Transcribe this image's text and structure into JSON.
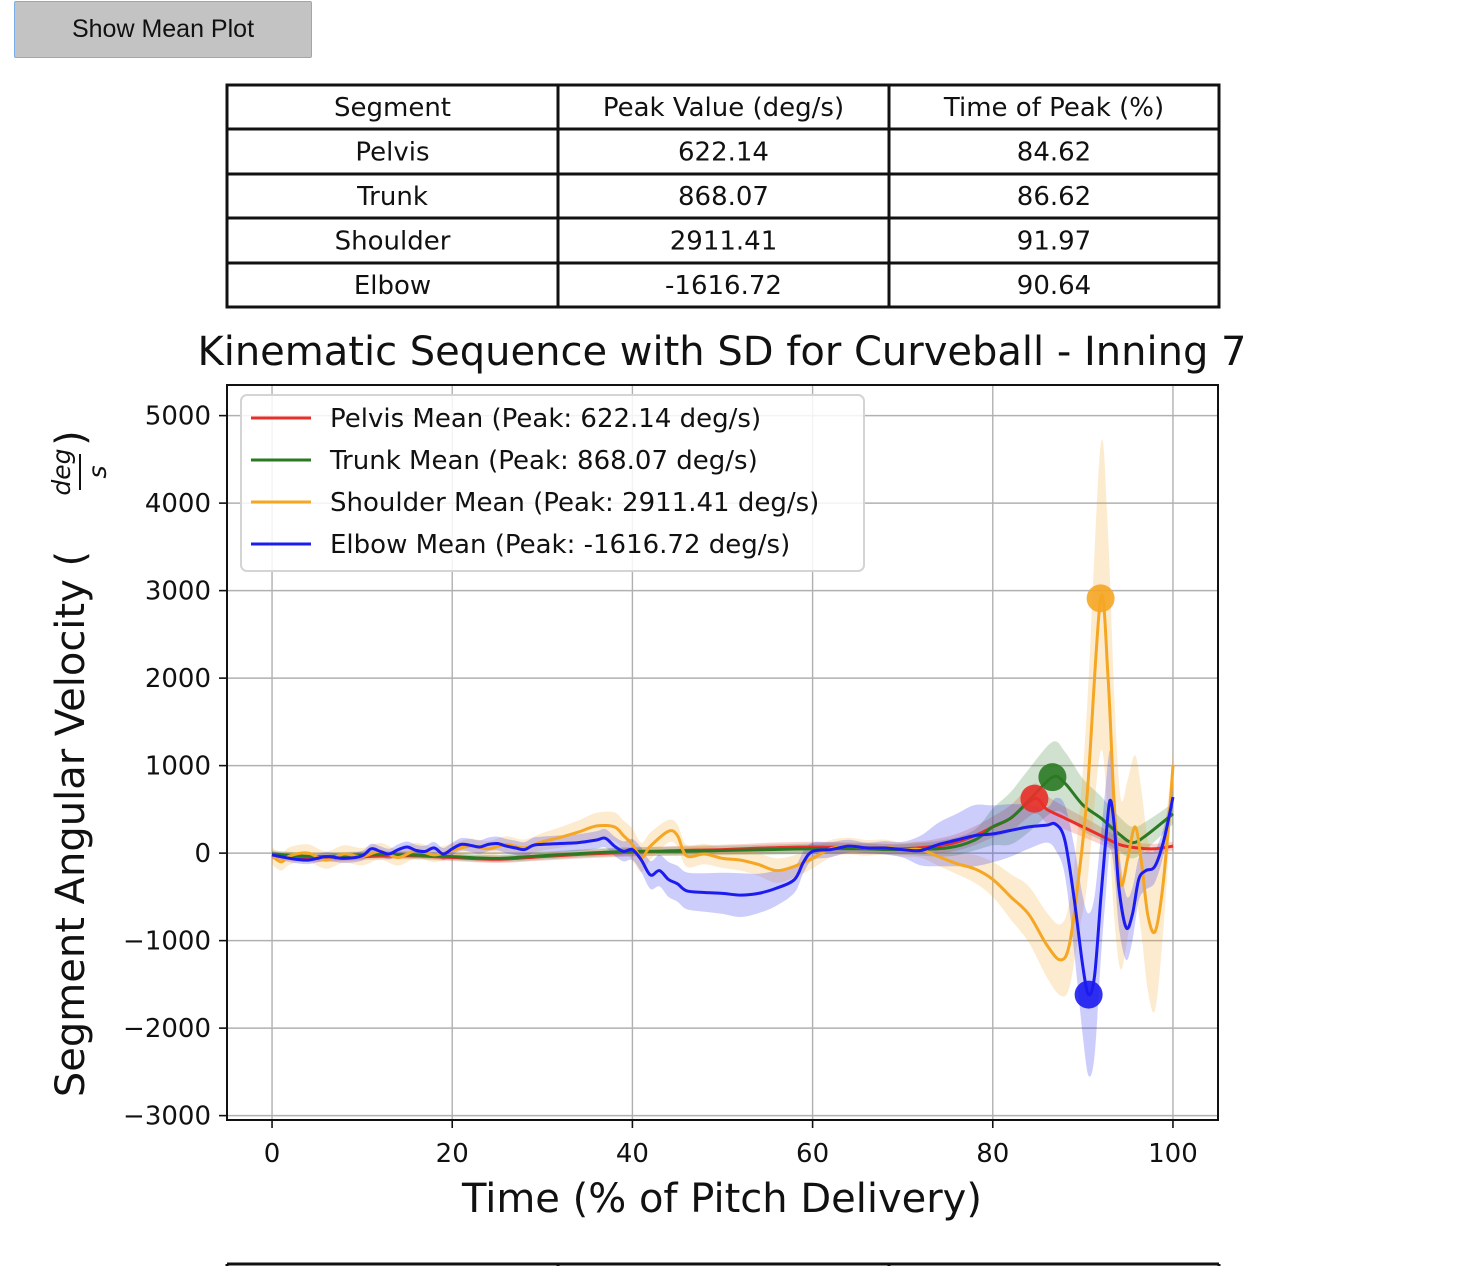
{
  "button": {
    "label": "Show Mean Plot"
  },
  "table": {
    "headers": [
      "Segment",
      "Peak Value (deg/s)",
      "Time of Peak (%)"
    ],
    "rows": [
      [
        "Pelvis",
        "622.14",
        "84.62"
      ],
      [
        "Trunk",
        "868.07",
        "86.62"
      ],
      [
        "Shoulder",
        "2911.41",
        "91.97"
      ],
      [
        "Elbow",
        "-1616.72",
        "90.64"
      ]
    ]
  },
  "chart_data": {
    "type": "line",
    "title": "Kinematic Sequence with SD for Curveball - Inning 7",
    "xlabel": "Time (% of Pitch Delivery)",
    "ylabel": "Segment Angular Velocity (deg/s)",
    "ylabel_main": "Segment Angular Velocity (",
    "ylabel_num": "deg",
    "ylabel_den": "s",
    "ylabel_close": ")",
    "xlim": [
      -5,
      105
    ],
    "ylim": [
      -3050,
      5350
    ],
    "xticks": [
      0,
      20,
      40,
      60,
      80,
      100
    ],
    "yticks": [
      5000,
      4000,
      3000,
      2000,
      1000,
      0,
      -1000,
      -2000,
      -3000
    ],
    "ytick_labels": [
      "5000",
      "4000",
      "3000",
      "2000",
      "1000",
      "0",
      "−1000",
      "−2000",
      "−3000"
    ],
    "grid": true,
    "legend_position": "top-left",
    "series": [
      {
        "name": "Pelvis Mean (Peak: 622.14 deg/s)",
        "color": "#e8302a",
        "peak": [
          84.62,
          622.14
        ],
        "points": [
          [
            0,
            -30
          ],
          [
            5,
            -60
          ],
          [
            10,
            -40
          ],
          [
            15,
            -30
          ],
          [
            20,
            -50
          ],
          [
            25,
            -70
          ],
          [
            30,
            -40
          ],
          [
            35,
            -10
          ],
          [
            40,
            10
          ],
          [
            45,
            30
          ],
          [
            50,
            40
          ],
          [
            55,
            60
          ],
          [
            60,
            70
          ],
          [
            65,
            60
          ],
          [
            70,
            50
          ],
          [
            75,
            100
          ],
          [
            78,
            200
          ],
          [
            80,
            300
          ],
          [
            82,
            400
          ],
          [
            84.62,
            622.14
          ],
          [
            86,
            500
          ],
          [
            88,
            400
          ],
          [
            90,
            300
          ],
          [
            92,
            200
          ],
          [
            94,
            100
          ],
          [
            96,
            60
          ],
          [
            98,
            50
          ],
          [
            100,
            80
          ]
        ],
        "sd": [
          [
            0,
            40
          ],
          [
            20,
            40
          ],
          [
            40,
            50
          ],
          [
            60,
            60
          ],
          [
            70,
            60
          ],
          [
            80,
            120
          ],
          [
            84,
            180
          ],
          [
            88,
            130
          ],
          [
            92,
            100
          ],
          [
            96,
            60
          ],
          [
            100,
            50
          ]
        ]
      },
      {
        "name": "Trunk Mean (Peak: 868.07 deg/s)",
        "color": "#2b7a23",
        "peak": [
          86.62,
          868.07
        ],
        "points": [
          [
            0,
            -10
          ],
          [
            5,
            -40
          ],
          [
            10,
            -20
          ],
          [
            15,
            -20
          ],
          [
            20,
            -40
          ],
          [
            25,
            -60
          ],
          [
            30,
            -30
          ],
          [
            35,
            0
          ],
          [
            40,
            20
          ],
          [
            45,
            20
          ],
          [
            50,
            30
          ],
          [
            55,
            40
          ],
          [
            60,
            50
          ],
          [
            65,
            50
          ],
          [
            70,
            40
          ],
          [
            75,
            60
          ],
          [
            78,
            150
          ],
          [
            80,
            300
          ],
          [
            82,
            400
          ],
          [
            84,
            600
          ],
          [
            86.62,
            868.07
          ],
          [
            88,
            800
          ],
          [
            90,
            550
          ],
          [
            92,
            400
          ],
          [
            94,
            220
          ],
          [
            95.5,
            120
          ],
          [
            97,
            200
          ],
          [
            100,
            450
          ]
        ],
        "sd": [
          [
            0,
            40
          ],
          [
            20,
            40
          ],
          [
            40,
            50
          ],
          [
            60,
            60
          ],
          [
            70,
            60
          ],
          [
            78,
            120
          ],
          [
            82,
            300
          ],
          [
            86,
            420
          ],
          [
            90,
            300
          ],
          [
            94,
            200
          ],
          [
            100,
            120
          ]
        ]
      },
      {
        "name": "Shoulder Mean (Peak: 2911.41 deg/s)",
        "color": "#f5a623",
        "peak": [
          91.97,
          2911.41
        ],
        "points": [
          [
            0,
            -30
          ],
          [
            1,
            -100
          ],
          [
            2,
            -30
          ],
          [
            4,
            0
          ],
          [
            6,
            -80
          ],
          [
            8,
            -10
          ],
          [
            10,
            -40
          ],
          [
            12,
            20
          ],
          [
            14,
            -50
          ],
          [
            16,
            30
          ],
          [
            18,
            -20
          ],
          [
            20,
            30
          ],
          [
            22,
            80
          ],
          [
            24,
            50
          ],
          [
            26,
            100
          ],
          [
            28,
            60
          ],
          [
            30,
            130
          ],
          [
            32,
            180
          ],
          [
            34,
            240
          ],
          [
            36,
            310
          ],
          [
            38,
            300
          ],
          [
            39,
            200
          ],
          [
            40,
            100
          ],
          [
            41,
            -50
          ],
          [
            42,
            80
          ],
          [
            44,
            250
          ],
          [
            45,
            200
          ],
          [
            46,
            -30
          ],
          [
            48,
            -10
          ],
          [
            50,
            -60
          ],
          [
            52,
            -80
          ],
          [
            54,
            -130
          ],
          [
            56,
            -200
          ],
          [
            58,
            -150
          ],
          [
            60,
            -60
          ],
          [
            62,
            50
          ],
          [
            64,
            80
          ],
          [
            66,
            60
          ],
          [
            68,
            70
          ],
          [
            70,
            40
          ],
          [
            72,
            40
          ],
          [
            74,
            -40
          ],
          [
            76,
            -120
          ],
          [
            78,
            -180
          ],
          [
            80,
            -300
          ],
          [
            82,
            -500
          ],
          [
            84,
            -700
          ],
          [
            86,
            -1050
          ],
          [
            87.5,
            -1220
          ],
          [
            88.5,
            -1050
          ],
          [
            89.5,
            -300
          ],
          [
            90.5,
            700
          ],
          [
            91.97,
            2911.41
          ],
          [
            92.8,
            2000
          ],
          [
            93.5,
            500
          ],
          [
            94.2,
            -350
          ],
          [
            95,
            -50
          ],
          [
            95.8,
            300
          ],
          [
            96.5,
            -100
          ],
          [
            97.2,
            -700
          ],
          [
            98,
            -900
          ],
          [
            98.8,
            -450
          ],
          [
            99.5,
            300
          ],
          [
            100,
            1000
          ]
        ],
        "sd": [
          [
            0,
            100
          ],
          [
            10,
            100
          ],
          [
            20,
            80
          ],
          [
            30,
            100
          ],
          [
            36,
            150
          ],
          [
            40,
            180
          ],
          [
            44,
            130
          ],
          [
            50,
            110
          ],
          [
            56,
            140
          ],
          [
            62,
            100
          ],
          [
            70,
            80
          ],
          [
            76,
            120
          ],
          [
            80,
            200
          ],
          [
            84,
            320
          ],
          [
            88,
            420
          ],
          [
            90,
            700
          ],
          [
            91.5,
            1700
          ],
          [
            92.5,
            1800
          ],
          [
            94,
            1000
          ],
          [
            96,
            800
          ],
          [
            98,
            900
          ],
          [
            100,
            150
          ]
        ]
      },
      {
        "name": "Elbow Mean (Peak: -1616.72 deg/s)",
        "color": "#1c1cf0",
        "peak": [
          90.64,
          -1616.72
        ],
        "points": [
          [
            0,
            -20
          ],
          [
            2,
            -60
          ],
          [
            4,
            -80
          ],
          [
            6,
            -40
          ],
          [
            8,
            -60
          ],
          [
            10,
            -30
          ],
          [
            11,
            50
          ],
          [
            12,
            20
          ],
          [
            13,
            -10
          ],
          [
            14,
            40
          ],
          [
            15,
            70
          ],
          [
            16,
            30
          ],
          [
            17,
            20
          ],
          [
            18,
            60
          ],
          [
            19,
            -10
          ],
          [
            20,
            50
          ],
          [
            21,
            100
          ],
          [
            22,
            90
          ],
          [
            23,
            70
          ],
          [
            24,
            100
          ],
          [
            25,
            110
          ],
          [
            26,
            80
          ],
          [
            27,
            60
          ],
          [
            28,
            40
          ],
          [
            29,
            90
          ],
          [
            30,
            100
          ],
          [
            32,
            110
          ],
          [
            34,
            120
          ],
          [
            36,
            150
          ],
          [
            37,
            170
          ],
          [
            38,
            80
          ],
          [
            39,
            20
          ],
          [
            40,
            40
          ],
          [
            41,
            -80
          ],
          [
            42,
            -250
          ],
          [
            43,
            -200
          ],
          [
            44,
            -300
          ],
          [
            45,
            -350
          ],
          [
            46,
            -430
          ],
          [
            48,
            -450
          ],
          [
            50,
            -460
          ],
          [
            52,
            -480
          ],
          [
            54,
            -460
          ],
          [
            56,
            -400
          ],
          [
            58,
            -300
          ],
          [
            59,
            -100
          ],
          [
            60,
            20
          ],
          [
            62,
            40
          ],
          [
            64,
            80
          ],
          [
            66,
            60
          ],
          [
            68,
            60
          ],
          [
            70,
            40
          ],
          [
            72,
            30
          ],
          [
            74,
            100
          ],
          [
            76,
            150
          ],
          [
            78,
            200
          ],
          [
            80,
            220
          ],
          [
            82,
            260
          ],
          [
            84,
            300
          ],
          [
            86,
            320
          ],
          [
            87,
            330
          ],
          [
            88,
            150
          ],
          [
            89,
            -500
          ],
          [
            90,
            -1300
          ],
          [
            90.64,
            -1616.72
          ],
          [
            91.3,
            -1400
          ],
          [
            92,
            -500
          ],
          [
            92.5,
            100
          ],
          [
            93,
            600
          ],
          [
            93.5,
            300
          ],
          [
            94,
            -400
          ],
          [
            94.8,
            -850
          ],
          [
            95.5,
            -700
          ],
          [
            96.2,
            -300
          ],
          [
            97,
            -200
          ],
          [
            98,
            -150
          ],
          [
            99,
            150
          ],
          [
            100,
            640
          ]
        ],
        "sd": [
          [
            0,
            40
          ],
          [
            20,
            70
          ],
          [
            36,
            100
          ],
          [
            40,
            120
          ],
          [
            44,
            200
          ],
          [
            48,
            220
          ],
          [
            52,
            250
          ],
          [
            56,
            200
          ],
          [
            60,
            100
          ],
          [
            66,
            60
          ],
          [
            70,
            90
          ],
          [
            74,
            250
          ],
          [
            78,
            350
          ],
          [
            82,
            300
          ],
          [
            86,
            200
          ],
          [
            88,
            400
          ],
          [
            90,
            800
          ],
          [
            91,
            1000
          ],
          [
            92,
            700
          ],
          [
            94,
            450
          ],
          [
            96,
            250
          ],
          [
            100,
            120
          ]
        ]
      }
    ]
  }
}
